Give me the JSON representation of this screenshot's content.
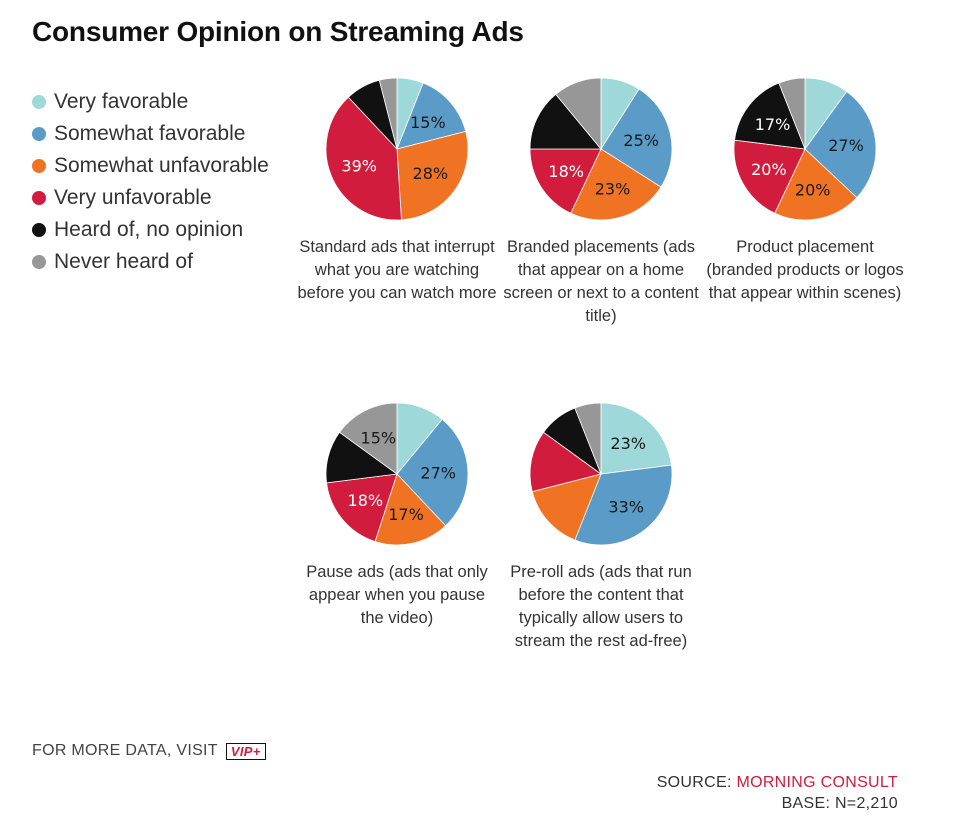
{
  "title": "Consumer Opinion on Streaming Ads",
  "legend": [
    {
      "label": "Very favorable",
      "color": "#9fd8d8"
    },
    {
      "label": "Somewhat favorable",
      "color": "#5b9bc7"
    },
    {
      "label": "Somewhat unfavorable",
      "color": "#f07324"
    },
    {
      "label": "Very unfavorable",
      "color": "#d11c3e"
    },
    {
      "label": "Heard of, no opinion",
      "color": "#111111"
    },
    {
      "label": "Never heard of",
      "color": "#979797"
    }
  ],
  "chart_data": [
    {
      "type": "pie",
      "title": "Standard ads that interrupt what you are watching before you can watch more",
      "labels": [
        "Very favorable",
        "Somewhat favorable",
        "Somewhat unfavorable",
        "Very unfavorable",
        "Heard of, no opinion",
        "Never heard of"
      ],
      "values": [
        6,
        15,
        28,
        39,
        8,
        4
      ],
      "printed_labels": [
        "",
        "15%",
        "28%",
        "39%",
        "",
        ""
      ]
    },
    {
      "type": "pie",
      "title": "Branded placements (ads that appear on a home screen or next to a content title)",
      "labels": [
        "Very favorable",
        "Somewhat favorable",
        "Somewhat unfavorable",
        "Very unfavorable",
        "Heard of, no opinion",
        "Never heard of"
      ],
      "values": [
        9,
        25,
        23,
        18,
        14,
        11
      ],
      "printed_labels": [
        "",
        "25%",
        "23%",
        "18%",
        "",
        ""
      ]
    },
    {
      "type": "pie",
      "title": "Product placement (branded products or logos that appear within scenes)",
      "labels": [
        "Very favorable",
        "Somewhat favorable",
        "Somewhat unfavorable",
        "Very unfavorable",
        "Heard of, no opinion",
        "Never heard of"
      ],
      "values": [
        10,
        27,
        20,
        20,
        17,
        6
      ],
      "printed_labels": [
        "",
        "27%",
        "20%",
        "20%",
        "17%",
        ""
      ]
    },
    {
      "type": "pie",
      "title": "Pause ads (ads that only appear when you pause the video)",
      "labels": [
        "Very favorable",
        "Somewhat favorable",
        "Somewhat unfavorable",
        "Very unfavorable",
        "Heard of, no opinion",
        "Never heard of"
      ],
      "values": [
        11,
        27,
        17,
        18,
        12,
        15
      ],
      "printed_labels": [
        "",
        "27%",
        "17%",
        "18%",
        "",
        "15%"
      ]
    },
    {
      "type": "pie",
      "title": "Pre-roll ads (ads that run before the content that typically allow users to stream the rest ad-free)",
      "labels": [
        "Very favorable",
        "Somewhat favorable",
        "Somewhat unfavorable",
        "Very unfavorable",
        "Heard of, no opinion",
        "Never heard of"
      ],
      "values": [
        23,
        33,
        15,
        14,
        9,
        6
      ],
      "printed_labels": [
        "23%",
        "33%",
        "",
        "",
        "",
        ""
      ]
    }
  ],
  "footer": {
    "more_data": "FOR MORE DATA, VISIT",
    "vip_label": "VIP+",
    "source_label": "SOURCE:",
    "source_name": "MORNING CONSULT",
    "base": "BASE: N=2,210"
  }
}
